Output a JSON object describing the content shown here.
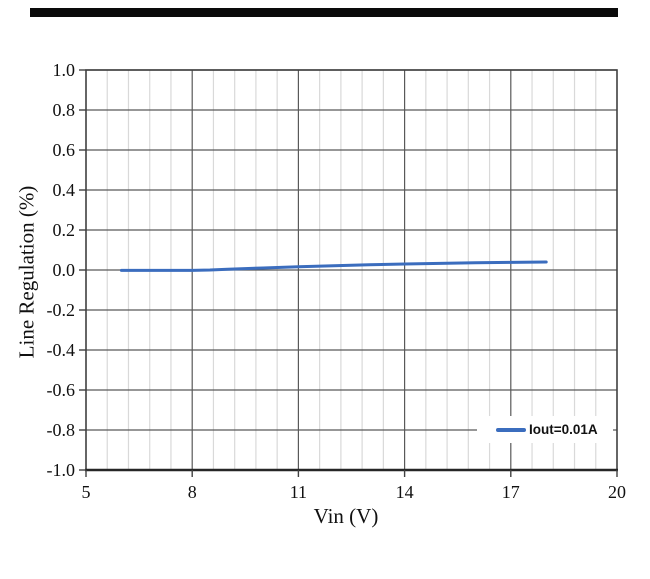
{
  "chart_data": {
    "type": "line",
    "title": "",
    "xlabel": "Vin (V)",
    "ylabel": "Line Regulation (%)",
    "xlim": [
      5,
      20
    ],
    "ylim": [
      -1.0,
      1.0
    ],
    "x_ticks": [
      "5",
      "8",
      "11",
      "14",
      "17",
      "20"
    ],
    "y_ticks": [
      "1.0",
      "0.8",
      "0.6",
      "0.4",
      "0.2",
      "0.0",
      "-0.2",
      "-0.4",
      "-0.6",
      "-0.8",
      "-1.0"
    ],
    "x_major_unit": 3,
    "x_minor_unit": 0.6,
    "y_major_unit": 0.2,
    "grid": {
      "horizontal_major": true,
      "vertical_major": true,
      "vertical_minor": true,
      "horizontal_minor": false
    },
    "legend": {
      "position": "bottom-right",
      "entries": [
        {
          "label": "Iout=0.01A",
          "color": "#3B6DBE"
        }
      ]
    },
    "series": [
      {
        "name": "Iout=0.01A",
        "x": [
          6,
          7,
          8,
          8.5,
          9,
          10,
          11,
          12,
          13,
          14,
          15,
          16,
          17,
          18
        ],
        "y": [
          -0.002,
          -0.002,
          -0.002,
          0.0,
          0.004,
          0.01,
          0.016,
          0.021,
          0.026,
          0.03,
          0.033,
          0.036,
          0.038,
          0.04
        ]
      }
    ],
    "colors": {
      "line": "#3B6DBE",
      "major_grid": "#595959",
      "minor_grid": "#D9D9D9",
      "frame": "#404040",
      "bottom_axis": "#262626",
      "text": "#111111"
    }
  }
}
